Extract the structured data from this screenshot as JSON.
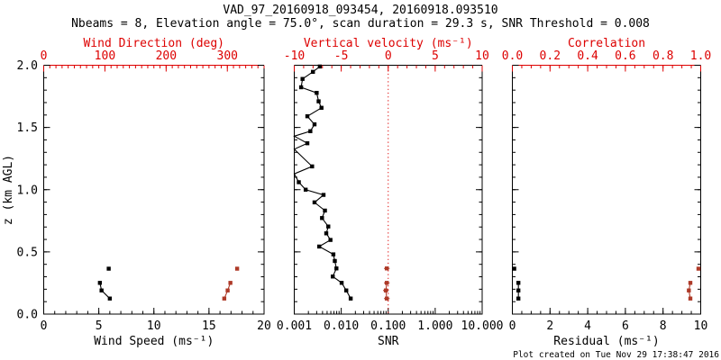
{
  "header": {
    "title": "VAD_97_20160918_093454, 20160918.093510",
    "subtitle": "Nbeams = 8, Elevation angle = 75.0°, scan duration = 29.3 s, SNR Threshold = 0.008"
  },
  "footer": {
    "created": "Plot created on Tue Nov 29 17:38:47 2016"
  },
  "ylabel": "z (km AGL)",
  "colors": {
    "axis_red": "#dd0000",
    "data_red": "#ae3a28",
    "black": "#000000"
  },
  "chart_data": [
    {
      "id": "wind",
      "type": "scatter",
      "top_axis_line_color": "red",
      "y_tick_labels": true,
      "x_bottom": {
        "label": "Wind Speed (ms⁻¹)",
        "min": 0,
        "max": 20,
        "minor_step": 1,
        "majors": [
          [
            0,
            "0"
          ],
          [
            5,
            "5"
          ],
          [
            10,
            "10"
          ],
          [
            15,
            "15"
          ],
          [
            20,
            "20"
          ]
        ]
      },
      "x_top": {
        "label": "Wind Direction (deg)",
        "min": 0,
        "max": 360,
        "minor_step": 10,
        "majors": [
          [
            0,
            "0"
          ],
          [
            100,
            "100"
          ],
          [
            200,
            "200"
          ],
          [
            300,
            "300"
          ]
        ]
      },
      "y": {
        "min": 0,
        "max": 2,
        "minor_step": 0.1,
        "majors": [
          [
            0,
            "0.0"
          ],
          [
            0.5,
            "0.5"
          ],
          [
            1,
            "1.0"
          ],
          [
            1.5,
            "1.5"
          ],
          [
            2,
            "2.0"
          ]
        ]
      },
      "series": [
        {
          "name": "wind-speed",
          "axis": "bottom",
          "color": "black",
          "segments": [
            [
              [
                5.9,
                0.365
              ]
            ],
            [
              [
                5.1,
                0.251
              ],
              [
                5.25,
                0.19
              ],
              [
                6.0,
                0.125
              ]
            ]
          ]
        },
        {
          "name": "wind-direction",
          "axis": "top",
          "color": "red",
          "segments": [
            [
              [
                316,
                0.365
              ]
            ],
            [
              [
                305,
                0.251
              ],
              [
                300.5,
                0.19
              ],
              [
                295,
                0.125
              ]
            ]
          ]
        }
      ]
    },
    {
      "id": "snr",
      "type": "scatter",
      "top_axis_line_color": "black",
      "y_tick_labels": false,
      "ref_line": {
        "axis": "top",
        "value": 0
      },
      "x_bottom": {
        "label": "SNR",
        "min": 0.001,
        "max": 10,
        "scale": "log",
        "majors": [
          [
            0.001,
            "0.001"
          ],
          [
            0.01,
            "0.010"
          ],
          [
            0.1,
            "0.100"
          ],
          [
            1,
            "1.000"
          ],
          [
            10,
            "10.000"
          ]
        ]
      },
      "x_top": {
        "label": "Vertical velocity (ms⁻¹)",
        "min": -10,
        "max": 10,
        "minor_step": 1,
        "majors": [
          [
            -10,
            "-10"
          ],
          [
            -5,
            "-5"
          ],
          [
            0,
            "0"
          ],
          [
            5,
            "5"
          ],
          [
            10,
            "10"
          ]
        ]
      },
      "y": {
        "min": 0,
        "max": 2,
        "minor_step": 0.1,
        "majors": [
          [
            0,
            "0.0"
          ],
          [
            0.5,
            "0.5"
          ],
          [
            1,
            "1.0"
          ],
          [
            1.5,
            "1.5"
          ],
          [
            2,
            "2.0"
          ]
        ]
      },
      "series": [
        {
          "name": "snr-profile",
          "axis": "bottom",
          "color": "black",
          "segments": [
            [
              [
                0.0035,
                1.99
              ],
              [
                0.0025,
                1.947
              ],
              [
                0.0015,
                1.89
              ],
              [
                0.0014,
                1.823
              ],
              [
                0.003,
                1.778
              ],
              [
                0.0033,
                1.71
              ],
              [
                0.0038,
                1.658
              ],
              [
                0.0019,
                1.59
              ],
              [
                0.0027,
                1.525
              ],
              [
                0.0022,
                1.47
              ],
              [
                0.001,
                1.43,
                0
              ],
              [
                0.0019,
                1.373
              ],
              [
                0.001,
                1.325,
                0
              ],
              [
                0.0024,
                1.187
              ],
              [
                0.001,
                1.127,
                0
              ],
              [
                0.00125,
                1.06
              ],
              [
                0.00175,
                1.0
              ],
              [
                0.0042,
                0.958
              ],
              [
                0.0027,
                0.898
              ],
              [
                0.0045,
                0.832
              ],
              [
                0.0039,
                0.772
              ],
              [
                0.0053,
                0.704
              ],
              [
                0.0048,
                0.649
              ],
              [
                0.0059,
                0.596
              ],
              [
                0.0034,
                0.543
              ],
              [
                0.0068,
                0.48
              ],
              [
                0.0073,
                0.427
              ],
              [
                0.0079,
                0.367
              ],
              [
                0.0066,
                0.302
              ],
              [
                0.0102,
                0.251
              ],
              [
                0.0128,
                0.19
              ],
              [
                0.0159,
                0.125
              ]
            ]
          ]
        },
        {
          "name": "vertical-velocity",
          "axis": "top",
          "color": "red",
          "xerr": 0.3,
          "segments": [
            [
              [
                -0.15,
                0.367
              ]
            ],
            [
              [
                -0.15,
                0.251
              ],
              [
                -0.25,
                0.19
              ],
              [
                -0.15,
                0.125
              ]
            ]
          ]
        }
      ]
    },
    {
      "id": "resid",
      "type": "scatter",
      "top_axis_line_color": "red",
      "y_tick_labels": false,
      "x_bottom": {
        "label": "Residual (ms⁻¹)",
        "min": 0,
        "max": 10,
        "minor_step": 0.5,
        "majors": [
          [
            0,
            "0"
          ],
          [
            2,
            "2"
          ],
          [
            4,
            "4"
          ],
          [
            6,
            "6"
          ],
          [
            8,
            "8"
          ],
          [
            10,
            "10"
          ]
        ]
      },
      "x_top": {
        "label": "Correlation",
        "min": 0,
        "max": 1,
        "minor_step": 0.05,
        "majors": [
          [
            0,
            "0.0"
          ],
          [
            0.2,
            "0.2"
          ],
          [
            0.4,
            "0.4"
          ],
          [
            0.6,
            "0.6"
          ],
          [
            0.8,
            "0.8"
          ],
          [
            1,
            "1.0"
          ]
        ]
      },
      "y": {
        "min": 0,
        "max": 2,
        "minor_step": 0.1,
        "majors": [
          [
            0,
            "0.0"
          ],
          [
            0.5,
            "0.5"
          ],
          [
            1,
            "1.0"
          ],
          [
            1.5,
            "1.5"
          ],
          [
            2,
            "2.0"
          ]
        ]
      },
      "series": [
        {
          "name": "residual",
          "axis": "bottom",
          "color": "black",
          "segments": [
            [
              [
                0.1,
                0.365
              ]
            ],
            [
              [
                0.32,
                0.251
              ],
              [
                0.32,
                0.19
              ],
              [
                0.32,
                0.125
              ]
            ]
          ]
        },
        {
          "name": "correlation",
          "axis": "top",
          "color": "red",
          "segments": [
            [
              [
                0.988,
                0.365
              ]
            ],
            [
              [
                0.945,
                0.251
              ],
              [
                0.937,
                0.19
              ],
              [
                0.945,
                0.125
              ]
            ]
          ]
        }
      ]
    }
  ]
}
